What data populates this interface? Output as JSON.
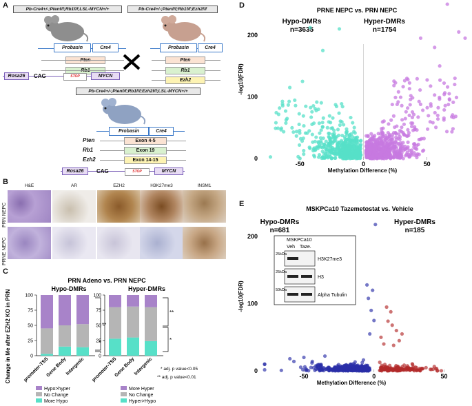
{
  "panels": {
    "a": "A",
    "b": "B",
    "c": "C",
    "d": "D",
    "e": "E"
  },
  "panel_a": {
    "genotype1": "Pb-Cre4+/-;Ptenf/f;Rb1f/f;LSL-MYCN+/+",
    "genotype2": "Pb-Cre4+/-;Ptenf/f;Rb1f/f;Ezh2f/f",
    "genotype3": "Pb-Cre4+/-;Ptenf/f;Rb1f/f;Ezh2f/f;LSL-MYCN+/+",
    "probasin": "Probasin",
    "cre4": "Cre4",
    "pten": "Pten",
    "rb1": "Rb1",
    "ezh2": "Ezh2",
    "rosa26": "Rosa26",
    "cag": "CAG",
    "stop": "STOP",
    "mycn": "MYCN",
    "exon45": "Exon 4-5",
    "exon19": "Exon 19",
    "exon1415": "Exon 14-15"
  },
  "panel_b": {
    "headers": [
      "H&E",
      "AR",
      "EZH2",
      "H3K27me3",
      "INSM1"
    ],
    "rows": [
      "PRN NEPC",
      "PRNE NEPC"
    ]
  },
  "panel_c": {
    "title": "PRN Adeno vs. PRN NEPC",
    "ylabel": "Change in Me after EZH2 KO in PRN",
    "left_title": "Hypo-DMRs",
    "right_title": "Hyper-DMRs",
    "note1": "* adj. p value<0.05",
    "note2": "** adj. p value<0.01",
    "star1": "**",
    "star2": "*",
    "star3": "**",
    "star4": "*",
    "left_legend": [
      "Hypo>hyper",
      "No Change",
      "More Hypo"
    ],
    "right_legend": [
      "More Hyper",
      "No Change",
      "Hyper>Hypo"
    ]
  },
  "panel_d": {
    "title": "PRNE NEPC vs. PRN NEPC",
    "hypo_label": "Hypo-DMRs",
    "hypo_n": "n=3635",
    "hyper_label": "Hyper-DMRs",
    "hyper_n": "n=1754"
  },
  "panel_e": {
    "title": "MSKPCa10 Tazemetostat vs. Vehicle",
    "hypo_label": "Hypo-DMRs",
    "hypo_n": "n=681",
    "hyper_label": "Hyper-DMRs",
    "hyper_n": "n=185",
    "blot_title": "MSKPCa10",
    "lane1": "Veh",
    "lane2": "Taze.",
    "mw1": "25kDa",
    "mw2": "25kDa",
    "mw3": "50kDa",
    "band1": "H3K27me3",
    "band2": "H3",
    "band3": "Alpha Tubulin"
  },
  "colors": {
    "more_hypo": "#57e0c8",
    "no_change": "#b5b5b5",
    "hypo_hyper": "#a883c9",
    "teal": "#57e0c8",
    "purple": "#c77ae0",
    "blue": "#2a2ea8",
    "red": "#b22a2a"
  },
  "chart_data": [
    {
      "type": "bar",
      "name": "Hypo-DMRs",
      "categories": [
        "promoter-TSS",
        "Gene Body",
        "Intergenic"
      ],
      "series": [
        {
          "name": "More Hypo",
          "values": [
            3,
            15,
            14
          ]
        },
        {
          "name": "No Change",
          "values": [
            42,
            35,
            38
          ]
        },
        {
          "name": "Hypo>hyper",
          "values": [
            55,
            50,
            48
          ]
        }
      ],
      "ylim": [
        0,
        100
      ],
      "yticks": [
        0,
        25,
        50,
        75,
        100
      ]
    },
    {
      "type": "bar",
      "name": "Hyper-DMRs",
      "categories": [
        "promoter-TSS",
        "Gene Body",
        "Intergenic"
      ],
      "series": [
        {
          "name": "Hyper>Hypo",
          "values": [
            28,
            30,
            24
          ]
        },
        {
          "name": "No Change",
          "values": [
            52,
            51,
            56
          ]
        },
        {
          "name": "More Hyper",
          "values": [
            20,
            19,
            20
          ]
        }
      ],
      "ylim": [
        0,
        100
      ],
      "yticks": [
        0,
        25,
        50,
        75,
        100
      ]
    },
    {
      "type": "scatter",
      "title": "PRNE NEPC vs. PRN NEPC",
      "xlabel": "Methylation Difference (%)",
      "ylabel": "-log10(FDR)",
      "xlim": [
        -80,
        80
      ],
      "ylim": [
        0,
        230
      ],
      "xticks": [
        -50,
        0,
        50
      ],
      "yticks": [
        0,
        100,
        200
      ]
    },
    {
      "type": "scatter",
      "title": "MSKPCa10 Tazemetostat vs. Vehicle",
      "xlabel": "Methylation Difference (%)",
      "ylabel": "-log10(FDR)",
      "xlim": [
        -80,
        65
      ],
      "ylim": [
        0,
        230
      ],
      "xticks": [
        -50,
        0,
        50
      ],
      "yticks": [
        0,
        100,
        200
      ]
    }
  ]
}
